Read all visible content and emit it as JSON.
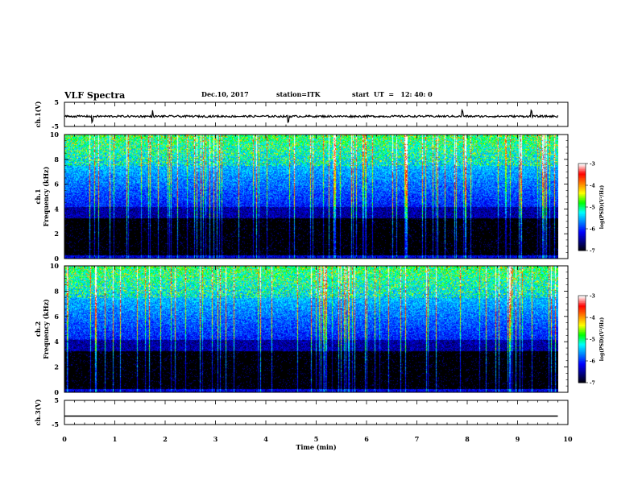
{
  "header": {
    "title": "VLF Spectra",
    "date": "Dec.10, 2017",
    "station": "station=ITK",
    "start": "start  UT  =   12: 40: 0"
  },
  "chart_data": [
    {
      "type": "line",
      "panel": "ch1-waveform",
      "ylabel": "ch.1(V)",
      "ylim": [
        -5,
        5
      ],
      "yticks": [
        "5",
        "-5"
      ],
      "xlim": [
        0,
        10
      ],
      "baseline": -0.8,
      "description_values": {
        "noise_amplitude": 0.4,
        "spikes_at_min": [
          0.55,
          1.75,
          4.45,
          7.9,
          9.28
        ]
      }
    },
    {
      "type": "heatmap",
      "panel": "ch1-spectrogram",
      "ylabel": "ch.1\nFrequency (kHz)",
      "ylim": [
        0,
        10
      ],
      "yticks": [
        "0",
        "2",
        "4",
        "6",
        "8",
        "10"
      ],
      "xlim": [
        0,
        10
      ],
      "data_extent_min": 9.8,
      "colorbar": {
        "label": "log(PSD)(V²/Hz)",
        "range": [
          -7,
          -3
        ],
        "ticks": [
          "-3",
          "-4",
          "-5",
          "-6",
          "-7"
        ]
      }
    },
    {
      "type": "heatmap",
      "panel": "ch2-spectrogram",
      "ylabel": "ch.2\nFrequency (kHz)",
      "ylim": [
        0,
        10
      ],
      "yticks": [
        "0",
        "2",
        "4",
        "6",
        "8",
        "10"
      ],
      "xlim": [
        0,
        10
      ],
      "data_extent_min": 9.8,
      "colorbar": {
        "label": "log(PSD)(V²/Hz)",
        "range": [
          -7,
          -3
        ],
        "ticks": [
          "-3",
          "-4",
          "-5",
          "-6",
          "-7"
        ]
      }
    },
    {
      "type": "line",
      "panel": "ch3-waveform",
      "ylabel": "ch.3(V)",
      "ylim": [
        -5,
        5
      ],
      "yticks": [
        "5",
        "-5"
      ],
      "xlim": [
        0,
        10
      ],
      "baseline": -1.5
    }
  ],
  "xaxis": {
    "label": "Time (min)",
    "ticks": [
      "0",
      "1",
      "2",
      "3",
      "4",
      "5",
      "6",
      "7",
      "8",
      "9",
      "10"
    ]
  },
  "colors": {
    "scale": [
      "#000000",
      "#000080",
      "#0000ff",
      "#0080ff",
      "#00ffff",
      "#00ff00",
      "#ffff00",
      "#ff8000",
      "#ff0000",
      "#ffffff"
    ]
  }
}
